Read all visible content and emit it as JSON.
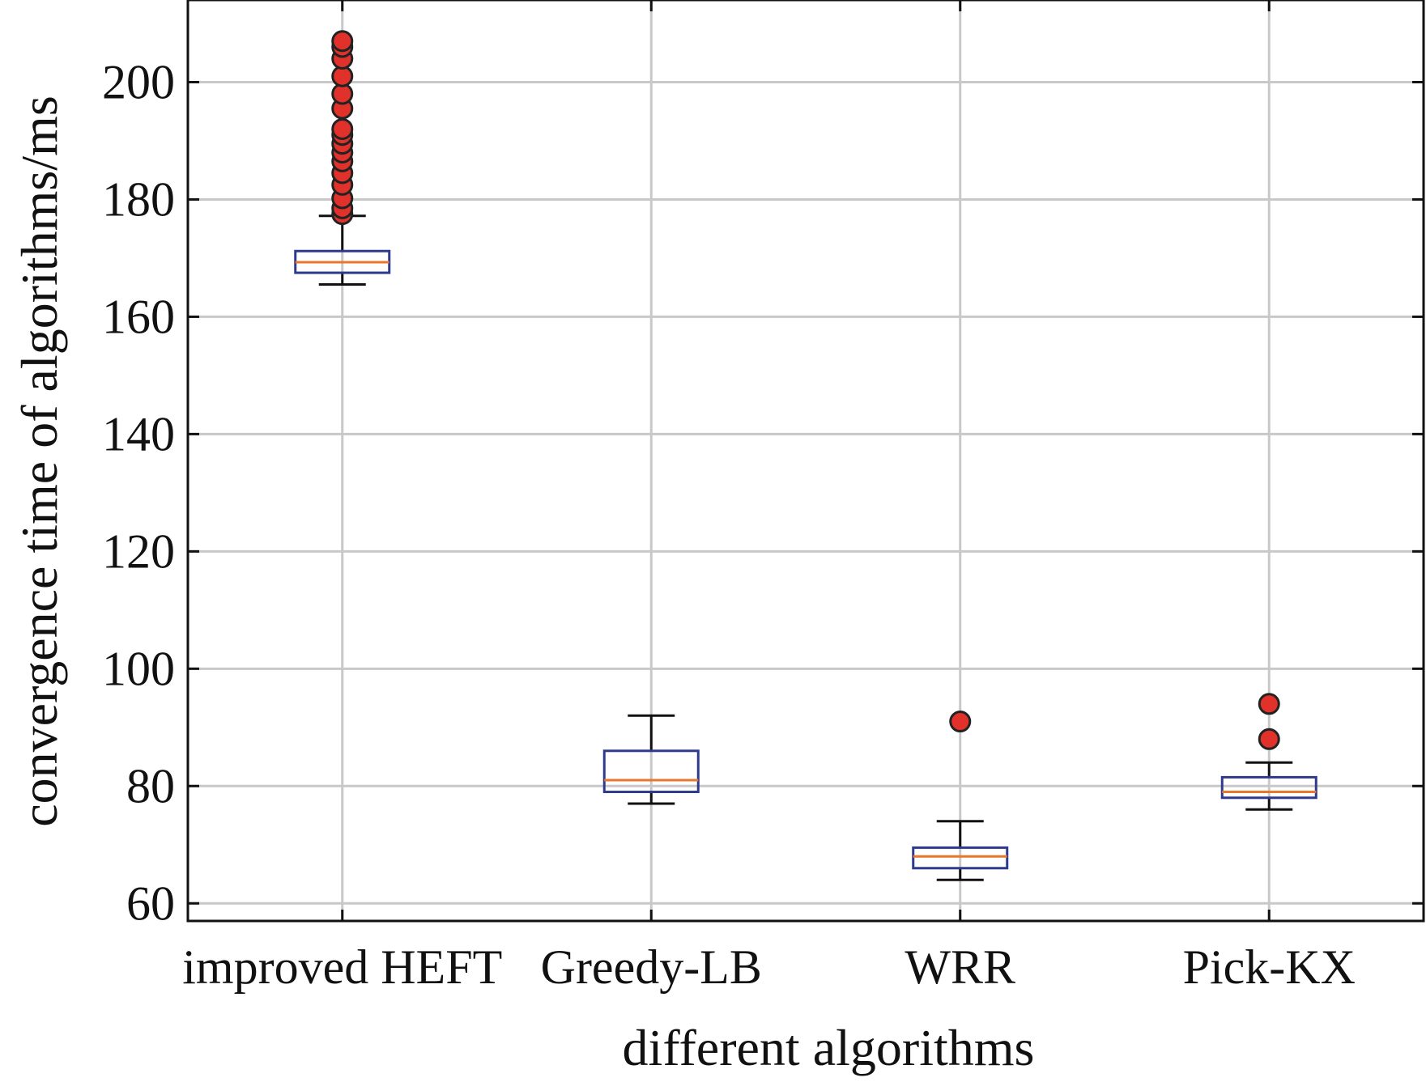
{
  "chart_data": {
    "type": "box",
    "title": "",
    "xlabel": "different algorithms",
    "ylabel": "convergence time of algorithms/ms",
    "ylim": [
      57,
      214
    ],
    "yticks": [
      60,
      80,
      100,
      120,
      140,
      160,
      180,
      200
    ],
    "grid": true,
    "categories": [
      "improved HEFT",
      "Greedy-LB",
      "WRR",
      "Pick-KX"
    ],
    "boxes": [
      {
        "name": "improved HEFT",
        "whislo": 165.5,
        "q1": 167.5,
        "med": 169.3,
        "q3": 171.2,
        "whishi": 177.2,
        "fliers": [
          177.5,
          178.5,
          180.2,
          182.5,
          184.5,
          186.5,
          188,
          189.5,
          191,
          192,
          195.5,
          198,
          201,
          204,
          206,
          207
        ]
      },
      {
        "name": "Greedy-LB",
        "whislo": 77,
        "q1": 79,
        "med": 81,
        "q3": 86,
        "whishi": 92,
        "fliers": []
      },
      {
        "name": "WRR",
        "whislo": 64,
        "q1": 66,
        "med": 68,
        "q3": 69.5,
        "whishi": 74,
        "fliers": [
          91
        ]
      },
      {
        "name": "Pick-KX",
        "whislo": 76,
        "q1": 78,
        "med": 79,
        "q3": 81.5,
        "whishi": 84,
        "fliers": [
          88,
          94
        ]
      }
    ],
    "colors": {
      "box": "#2e3a8c",
      "median": "#e8762b",
      "whisker": "#111111",
      "flier_fill": "#e0322a",
      "flier_edge": "#222222",
      "grid": "#c8c8c8"
    }
  }
}
